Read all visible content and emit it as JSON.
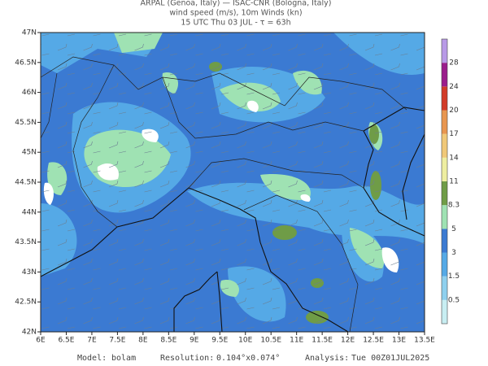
{
  "header": {
    "lines": [
      "ARPAL (Genoa, Italy)  —  ISAC-CNR (Bologna, Italy)",
      "wind speed (m/s), 10m Winds (kn)",
      "15 UTC Thu 03 JUL  -  τ = 63h"
    ]
  },
  "map": {
    "lon_labels": [
      "6E",
      "6.5E",
      "7E",
      "7.5E",
      "8E",
      "8.5E",
      "9E",
      "9.5E",
      "10E",
      "10.5E",
      "11E",
      "11.5E",
      "12E",
      "12.5E",
      "13E",
      "13.5E"
    ],
    "lat_labels": [
      "47N",
      "46.5N",
      "46N",
      "45.5N",
      "45N",
      "44.5N",
      "44N",
      "43.5N",
      "43N",
      "42.5N",
      "42N"
    ]
  },
  "colorbar": {
    "labels": [
      "0.5",
      "1.5",
      "3",
      "5",
      "8.3",
      "11",
      "14",
      "17",
      "20",
      "24",
      "28"
    ],
    "colors": [
      "#c8eef2",
      "#8fd0ee",
      "#55a9e6",
      "#3b7ad2",
      "#9fe2b3",
      "#6f9c47",
      "#eeeea0",
      "#f0c878",
      "#e89650",
      "#d23c28",
      "#9b1e8c",
      "#b89ae6"
    ]
  },
  "footer": {
    "items": [
      [
        "Model:",
        "bolam"
      ],
      [
        "Resolution:",
        "0.104°x0.074°"
      ],
      [
        "Analysis:",
        "Tue 00Z01JUL2025"
      ]
    ]
  }
}
